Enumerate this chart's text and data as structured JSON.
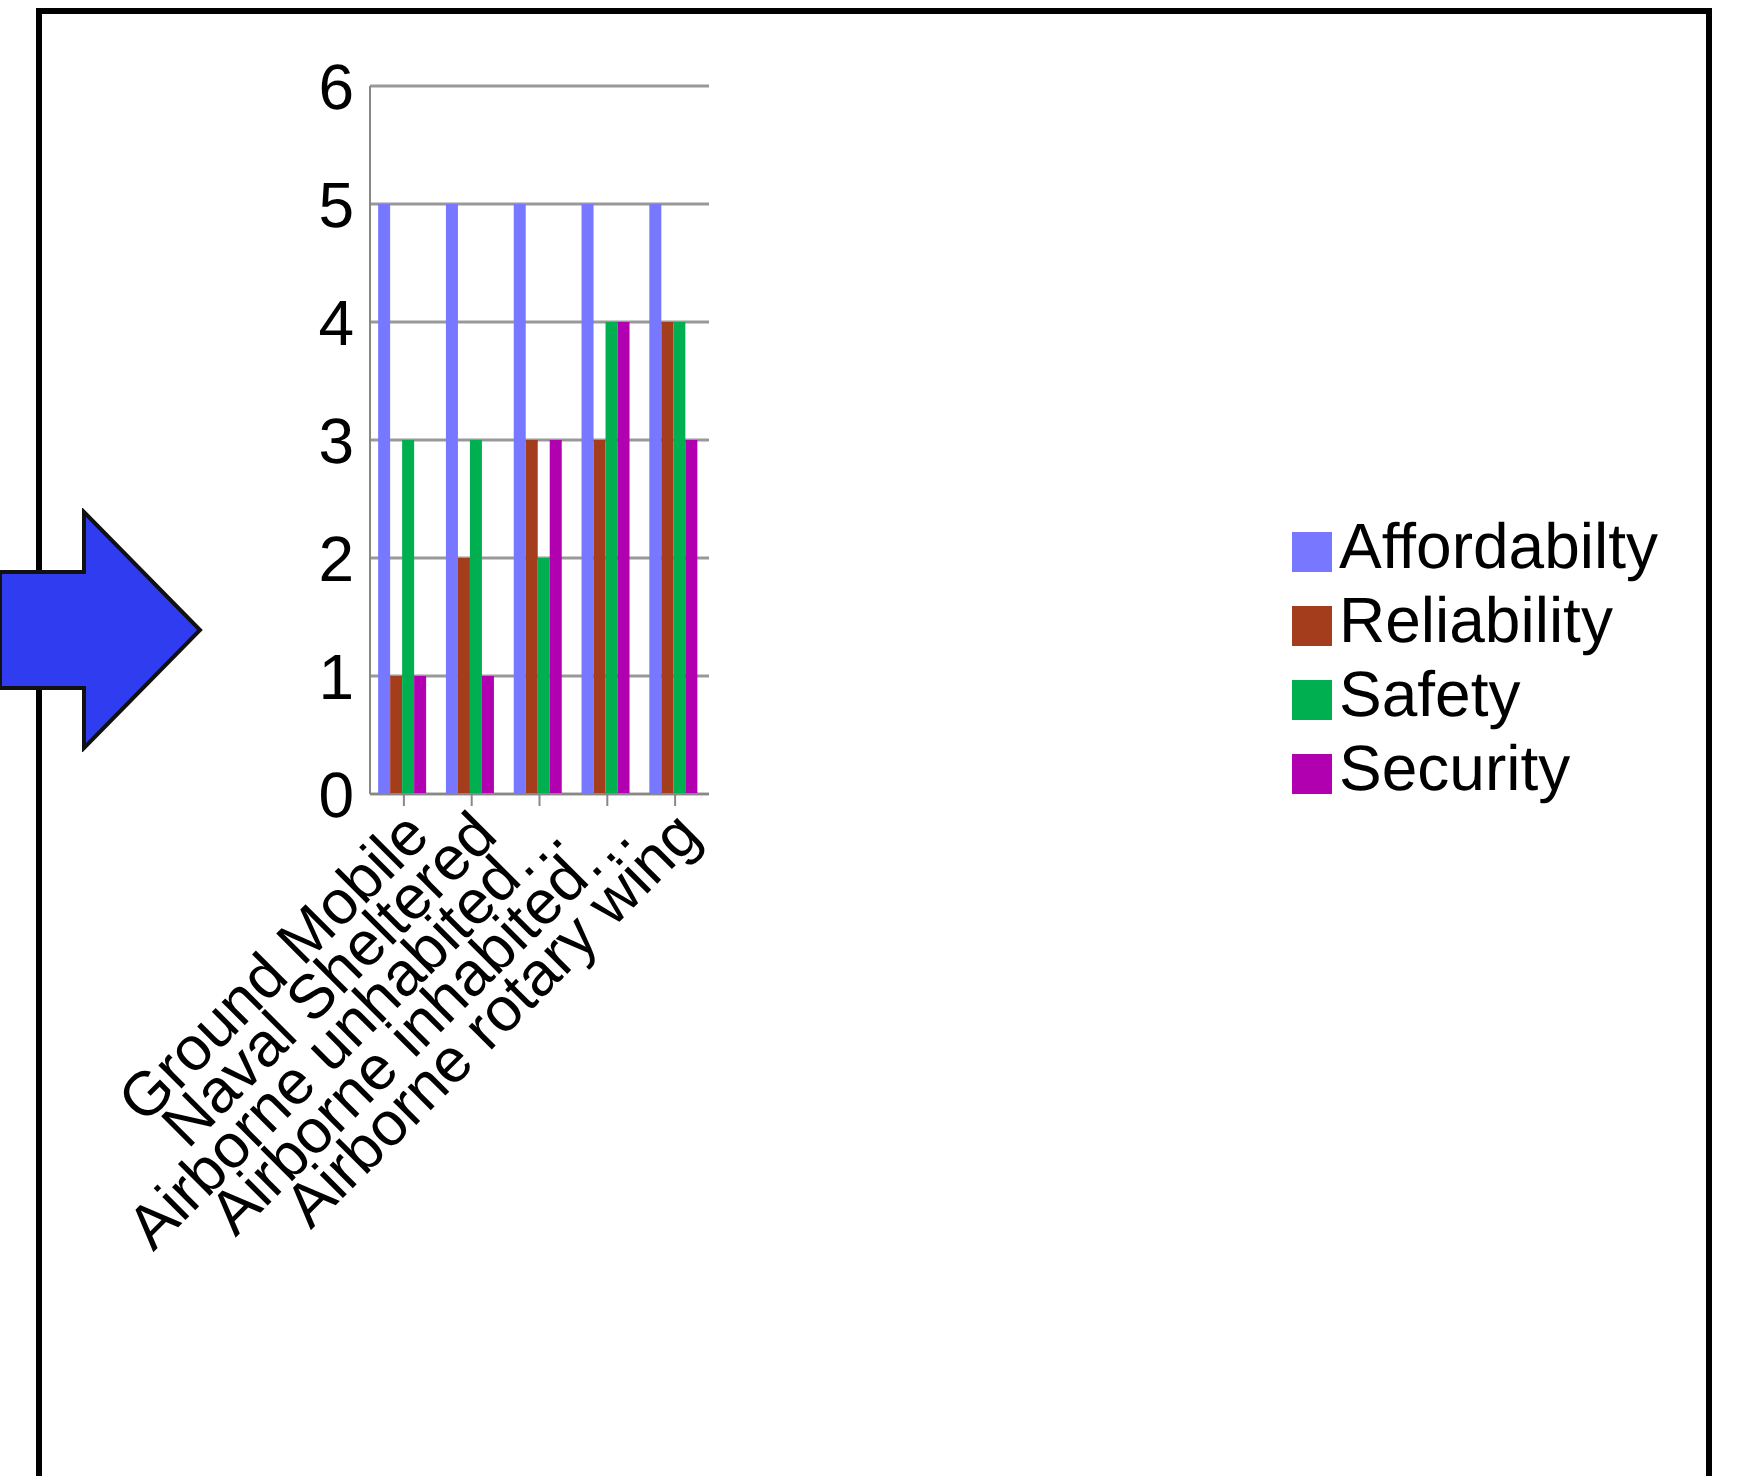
{
  "chart_data": {
    "type": "bar",
    "categories": [
      "Ground Mobile",
      "Naval Sheltered",
      "Airborne unhabited…",
      "Airborne inhabited…",
      "Airborne rotary wing"
    ],
    "series": [
      {
        "name": "Affordabilty",
        "color": "#7777ff",
        "values": [
          5,
          5,
          5,
          5,
          5
        ]
      },
      {
        "name": "Reliability",
        "color": "#a33d1b",
        "values": [
          1,
          2,
          3,
          3,
          4
        ]
      },
      {
        "name": "Safety",
        "color": "#00b050",
        "values": [
          3,
          3,
          2,
          4,
          4
        ]
      },
      {
        "name": "Security",
        "color": "#b000b0",
        "values": [
          1,
          1,
          3,
          4,
          3
        ]
      }
    ],
    "ylim": [
      0,
      6
    ],
    "yticks": [
      0,
      1,
      2,
      3,
      4,
      5,
      6
    ],
    "grid": "y",
    "legend": "right"
  }
}
